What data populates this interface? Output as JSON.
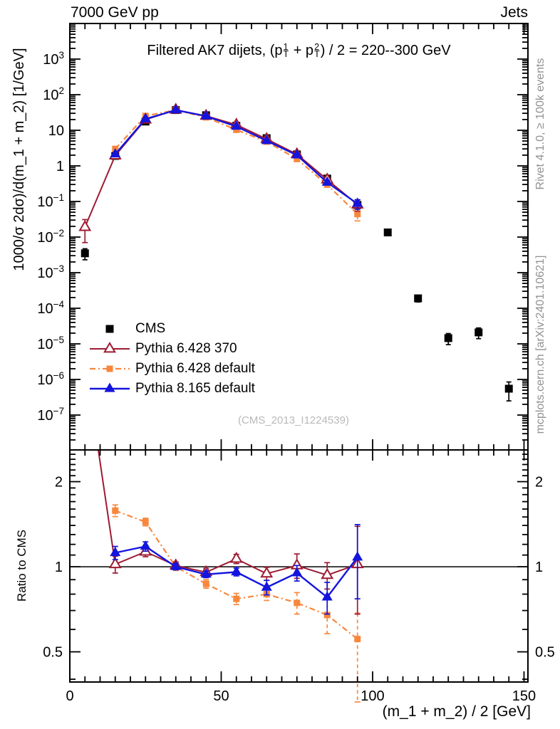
{
  "header": {
    "left": "7000 GeV pp",
    "right": "Jets"
  },
  "title": {
    "pre": "Filtered AK7 dijets, (p",
    "sup1": "1",
    "sub1": "T",
    "mid": " + p",
    "sup2": "2",
    "sub2": "T",
    "post": ") / 2 = 220--300 GeV"
  },
  "ylabel": "1000/σ 2dσ)/d(m_1 + m_2) [1/GeV]",
  "ratio_label": "Ratio to CMS",
  "xlabel": "(m_1 + m_2) / 2 [GeV]",
  "watermark": "(CMS_2013_I1224539)",
  "side_notes": {
    "top": "Rivet 4.1.0, ≥ 100k events",
    "bottom": "mcplots.cern.ch [arXiv:2401.10621]"
  },
  "legend": [
    {
      "label": "CMS",
      "series": "cms"
    },
    {
      "label": "Pythia 6.428 370",
      "series": "py6_370"
    },
    {
      "label": "Pythia 6.428 default",
      "series": "py6_def"
    },
    {
      "label": "Pythia 8.165 default",
      "series": "py8_def"
    }
  ],
  "axes": {
    "x": {
      "ticks": [
        0,
        50,
        100,
        150
      ],
      "minor_step": 5,
      "range": [
        0,
        151.3
      ]
    },
    "y_main": {
      "label_exponents": [
        3,
        2,
        1,
        0,
        -1,
        -2,
        -3,
        -4,
        -5,
        -6,
        -7
      ],
      "range_exp": [
        -7.98,
        4
      ]
    },
    "y_ratio": {
      "tick_values": [
        2,
        1,
        0.5
      ],
      "tick_labels": [
        "2",
        "1",
        "0.5"
      ],
      "minor_ticks": [
        0.4,
        0.5,
        0.6,
        0.7,
        0.8,
        0.9,
        1.0,
        1.1,
        1.2,
        1.3,
        1.4,
        1.5,
        1.6,
        1.7,
        1.8,
        1.9,
        2.0,
        2.1,
        2.2,
        2.3,
        2.4,
        2.5
      ],
      "range": [
        0.391,
        2.59
      ],
      "refline": 1
    }
  },
  "chart_data": {
    "type": "line",
    "title": "Filtered AK7 dijets, (pT1 + pT2) / 2 = 220--300 GeV",
    "xlabel": "(m_1 + m_2) / 2 [GeV]",
    "ylabel_main": "1000/σ 2dσ)/d(m_1 + m_2) [1/GeV]",
    "ylabel_ratio": "Ratio to CMS",
    "x_bin_centers": [
      5,
      15,
      25,
      35,
      45,
      55,
      65,
      75,
      85,
      95,
      105,
      115,
      125,
      135,
      145
    ],
    "draw_order": [
      "cms",
      "py6_def",
      "py6_370",
      "py8_def"
    ],
    "series": {
      "cms": {
        "label": "CMS",
        "color": "#000000",
        "marker": "square",
        "marker_size": 11,
        "fill": "filled",
        "line": "none",
        "width": 2,
        "x": [
          5,
          15,
          25,
          35,
          45,
          55,
          65,
          75,
          85,
          95,
          105,
          115,
          125,
          135,
          145
        ],
        "y": [
          0.0035,
          1.9,
          17.6,
          37.0,
          26.5,
          13.4,
          6.0,
          2.1,
          0.44,
          0.08,
          0.0135,
          0.00019,
          1.45e-05,
          2.1e-05,
          5.5e-07
        ],
        "yerr": [
          0.0012,
          0.06,
          0.4,
          0.8,
          0.6,
          0.3,
          0.15,
          0.06,
          0.02,
          0.008,
          0.0015,
          4e-05,
          5e-06,
          7e-06,
          3e-07
        ]
      },
      "py6_370": {
        "label": "Pythia 6.428 370",
        "color": "#9E1B32",
        "marker": "triangle",
        "marker_size": 13,
        "fill": "open",
        "line": "solid",
        "width": 2,
        "x": [
          5,
          15,
          25,
          35,
          45,
          55,
          65,
          75,
          85,
          95
        ],
        "y": [
          0.019,
          1.94,
          19.9,
          37.4,
          25.3,
          14.3,
          5.67,
          2.12,
          0.411,
          0.0816
        ],
        "yerr": [
          0.012,
          0.13,
          0.79,
          1.1,
          0.79,
          0.54,
          0.3,
          0.21,
          0.044,
          0.028
        ],
        "ratio": [
          5.4,
          1.02,
          1.13,
          1.01,
          0.956,
          1.066,
          0.945,
          1.01,
          0.934,
          1.02
        ],
        "ratio_lo": [
          5.4,
          0.95,
          1.085,
          0.98,
          0.926,
          1.026,
          0.895,
          0.91,
          0.834,
          0.68
        ],
        "ratio_hi": [
          5.4,
          1.09,
          1.175,
          1.04,
          0.986,
          1.106,
          0.995,
          1.11,
          1.034,
          1.39
        ]
      },
      "py6_def": {
        "label": "Pythia 6.428 default",
        "color": "#F8873C",
        "marker": "square",
        "marker_size": 9,
        "fill": "filled",
        "line": "dashdot",
        "width": 2.2,
        "err_dash": true,
        "x": [
          15,
          25,
          35,
          45,
          55,
          65,
          75,
          85,
          95
        ],
        "y": [
          3.0,
          25.3,
          37.0,
          23.1,
          10.3,
          4.8,
          1.56,
          0.297,
          0.0444
        ],
        "yerr": [
          0.14,
          0.79,
          1.1,
          0.8,
          0.47,
          0.24,
          0.14,
          0.042,
          0.016
        ],
        "ratio": [
          1.58,
          1.44,
          1.0,
          0.87,
          0.77,
          0.8,
          0.745,
          0.675,
          0.555
        ],
        "ratio_lo": [
          1.505,
          1.395,
          0.97,
          0.84,
          0.735,
          0.76,
          0.68,
          0.58,
          0.3
        ],
        "ratio_hi": [
          1.655,
          1.485,
          1.03,
          0.9,
          0.805,
          0.84,
          0.81,
          0.77,
          0.685
        ]
      },
      "py8_def": {
        "label": "Pythia 8.165 default",
        "color": "#1414DE",
        "marker": "triangle",
        "marker_size": 12,
        "fill": "filled",
        "line": "solid",
        "width": 2.4,
        "x": [
          15,
          25,
          35,
          45,
          55,
          65,
          75,
          85,
          95
        ],
        "y": [
          2.13,
          20.8,
          37.0,
          24.9,
          12.8,
          5.07,
          2.0,
          0.343,
          0.0864
        ],
        "yerr": [
          0.114,
          0.79,
          0.93,
          0.66,
          0.4,
          0.3,
          0.126,
          0.044,
          0.026
        ],
        "ratio": [
          1.12,
          1.18,
          1.0,
          0.94,
          0.958,
          0.845,
          0.95,
          0.78,
          1.08
        ],
        "ratio_lo": [
          1.06,
          1.135,
          0.975,
          0.915,
          0.928,
          0.795,
          0.89,
          0.68,
          0.77
        ],
        "ratio_hi": [
          1.18,
          1.225,
          1.025,
          0.965,
          0.988,
          0.895,
          1.01,
          0.88,
          1.41
        ]
      }
    }
  }
}
